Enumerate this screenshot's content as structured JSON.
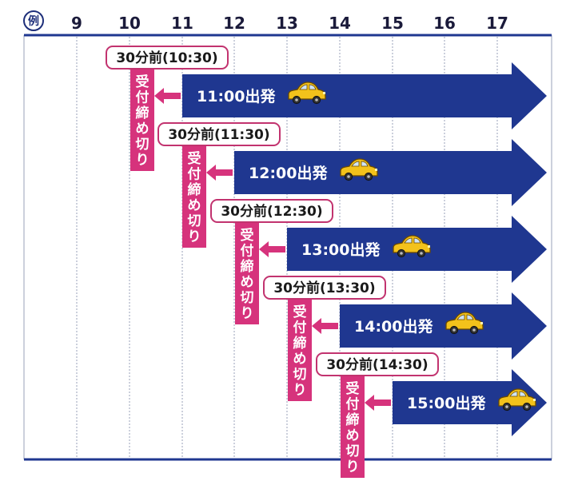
{
  "example_label": "例",
  "hours": [
    "9",
    "10",
    "11",
    "12",
    "13",
    "14",
    "15",
    "16",
    "17"
  ],
  "colors": {
    "arrow": "#1f3790",
    "deadline": "#d6337c",
    "callout_border": "#c2336f",
    "axis": "#1f3790",
    "grid": "#9aa0b8",
    "car_body": "#f3c21b"
  },
  "departures": [
    {
      "depart_label": "11:00出発",
      "cutoff_label": "30分前(10:30)",
      "deadline_label": "受付締め切り",
      "icon": "car-icon"
    },
    {
      "depart_label": "12:00出発",
      "cutoff_label": "30分前(11:30)",
      "deadline_label": "受付締め切り",
      "icon": "car-icon"
    },
    {
      "depart_label": "13:00出発",
      "cutoff_label": "30分前(12:30)",
      "deadline_label": "受付締め切り",
      "icon": "car-icon"
    },
    {
      "depart_label": "14:00出発",
      "cutoff_label": "30分前(13:30)",
      "deadline_label": "受付締め切り",
      "icon": "car-icon"
    },
    {
      "depart_label": "15:00出発",
      "cutoff_label": "30分前(14:30)",
      "deadline_label": "受付締め切り",
      "icon": "car-icon"
    }
  ]
}
